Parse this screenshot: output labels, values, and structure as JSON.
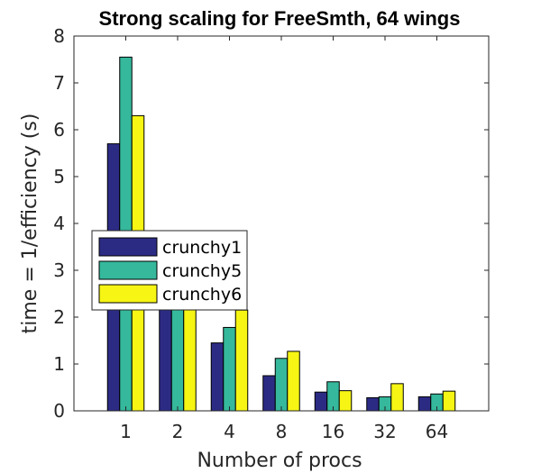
{
  "chart_data": {
    "type": "bar",
    "title": "Strong scaling for FreeSmth, 64 wings",
    "xlabel": "Number of procs",
    "ylabel": "time = 1/efficiency (s)",
    "categories": [
      "1",
      "2",
      "4",
      "8",
      "16",
      "32",
      "64"
    ],
    "ylim": [
      0,
      8
    ],
    "yticks": [
      "0",
      "1",
      "2",
      "3",
      "4",
      "5",
      "6",
      "7",
      "8"
    ],
    "series": [
      {
        "name": "crunchy1",
        "color": "#2c2b84",
        "values": [
          5.7,
          2.3,
          1.45,
          0.75,
          0.4,
          0.28,
          0.3
        ]
      },
      {
        "name": "crunchy5",
        "color": "#35b89c",
        "values": [
          7.55,
          2.3,
          1.78,
          1.12,
          0.62,
          0.3,
          0.36
        ]
      },
      {
        "name": "crunchy6",
        "color": "#f6f514",
        "values": [
          6.3,
          2.3,
          2.15,
          1.27,
          0.43,
          0.58,
          0.42
        ]
      }
    ],
    "legend_position": "middle-left",
    "grid": false
  }
}
